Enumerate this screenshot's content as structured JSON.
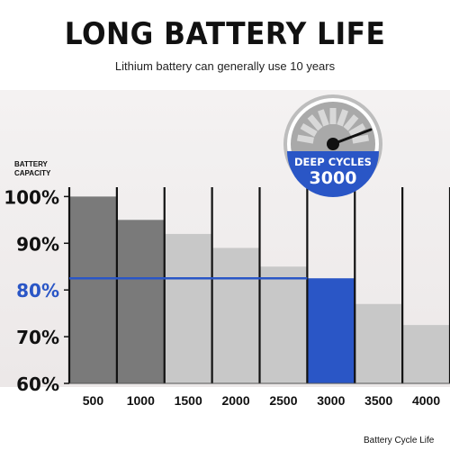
{
  "header": {
    "title": "LONG BATTERY LIFE",
    "subtitle": "Lithium battery can generally use 10 years"
  },
  "badge": {
    "line1": "DEEP CYCLES",
    "line2": "3000",
    "icon": "gauge-icon",
    "color": "#2a56c6"
  },
  "chart_data": {
    "type": "bar",
    "ylabel": "BATTERY CAPACITY",
    "xlabel": "Battery Cycle Life",
    "categories": [
      "500",
      "1000",
      "1500",
      "2000",
      "2500",
      "3000",
      "3500",
      "4000"
    ],
    "values": [
      100,
      95,
      92,
      89,
      85,
      82.5,
      77,
      72.5
    ],
    "yticks": [
      "100%",
      "90%",
      "80%",
      "70%",
      "60%"
    ],
    "ytick_values": [
      100,
      90,
      80,
      70,
      60
    ],
    "ylim": [
      60,
      102
    ],
    "highlight_category": "3000",
    "highlight_color": "#2a56c6",
    "reference_value": 82.5,
    "bar_colors": [
      "#7a7a7a",
      "#7a7a7a",
      "#c8c8c8",
      "#c8c8c8",
      "#c8c8c8",
      "#2a56c6",
      "#c8c8c8",
      "#c8c8c8"
    ]
  }
}
